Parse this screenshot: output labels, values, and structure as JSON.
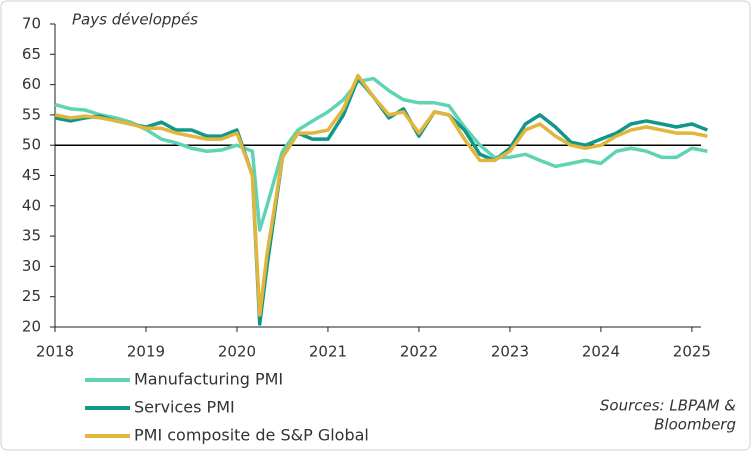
{
  "chart_data": {
    "type": "line",
    "subtitle": "Pays développés",
    "x": [
      2018,
      2018.17,
      2018.33,
      2018.5,
      2018.67,
      2018.83,
      2019,
      2019.17,
      2019.33,
      2019.5,
      2019.67,
      2019.83,
      2020,
      2020.17,
      2020.25,
      2020.33,
      2020.5,
      2020.67,
      2020.83,
      2021,
      2021.17,
      2021.33,
      2021.5,
      2021.67,
      2021.83,
      2022,
      2022.17,
      2022.33,
      2022.5,
      2022.67,
      2022.83,
      2023,
      2023.17,
      2023.33,
      2023.5,
      2023.67,
      2023.83,
      2024,
      2024.17,
      2024.33,
      2024.5,
      2024.67,
      2024.83,
      2025,
      2025.17
    ],
    "series": [
      {
        "name": "Manufacturing PMI",
        "color": "#5fd3b3",
        "values": [
          56.7,
          56,
          55.8,
          55,
          54.5,
          53.8,
          52.6,
          51,
          50.4,
          49.5,
          49,
          49.2,
          50,
          49,
          36,
          40,
          49,
          52.5,
          54,
          55.5,
          57.5,
          60.5,
          61,
          59,
          57.5,
          57,
          57,
          56.5,
          53,
          50,
          48,
          48,
          48.5,
          47.5,
          46.5,
          47,
          47.5,
          47,
          49,
          49.5,
          49,
          48,
          48,
          49.5,
          49
        ]
      },
      {
        "name": "Services PMI",
        "color": "#11978a",
        "values": [
          54.5,
          54,
          54.5,
          54.8,
          54,
          53.5,
          53,
          53.8,
          52.5,
          52.5,
          51.5,
          51.5,
          52.5,
          45,
          20.5,
          30,
          48,
          52,
          51,
          51,
          55,
          61,
          58,
          54.5,
          56,
          51.5,
          55.5,
          55,
          52.5,
          48.5,
          47.5,
          49.5,
          53.5,
          55,
          53,
          50.5,
          50,
          51,
          52,
          53.5,
          54,
          53.5,
          53,
          53.5,
          52.5
        ]
      },
      {
        "name": "PMI composite de S&P Global",
        "color": "#e2b53c",
        "values": [
          55,
          54.5,
          54.8,
          54.5,
          54,
          53.5,
          52.8,
          52.8,
          52,
          51.5,
          51,
          51,
          52,
          45,
          22,
          32,
          48,
          52,
          52,
          52.5,
          56,
          61.5,
          58,
          55,
          55.5,
          52,
          55.5,
          55,
          51,
          47.5,
          47.5,
          49,
          52.5,
          53.5,
          51.5,
          50,
          49.5,
          50,
          51.5,
          52.5,
          53,
          52.5,
          52,
          52,
          51.5
        ]
      }
    ],
    "xlim": [
      2018,
      2025.1
    ],
    "xticks": [
      2018,
      2019,
      2020,
      2021,
      2022,
      2023,
      2024,
      2025
    ],
    "ylim": [
      20,
      70
    ],
    "yticks": [
      20,
      25,
      30,
      35,
      40,
      45,
      50,
      55,
      60,
      65,
      70
    ],
    "reference_line": 50,
    "source": [
      "Sources: LBPAM &",
      "Bloomberg"
    ]
  }
}
